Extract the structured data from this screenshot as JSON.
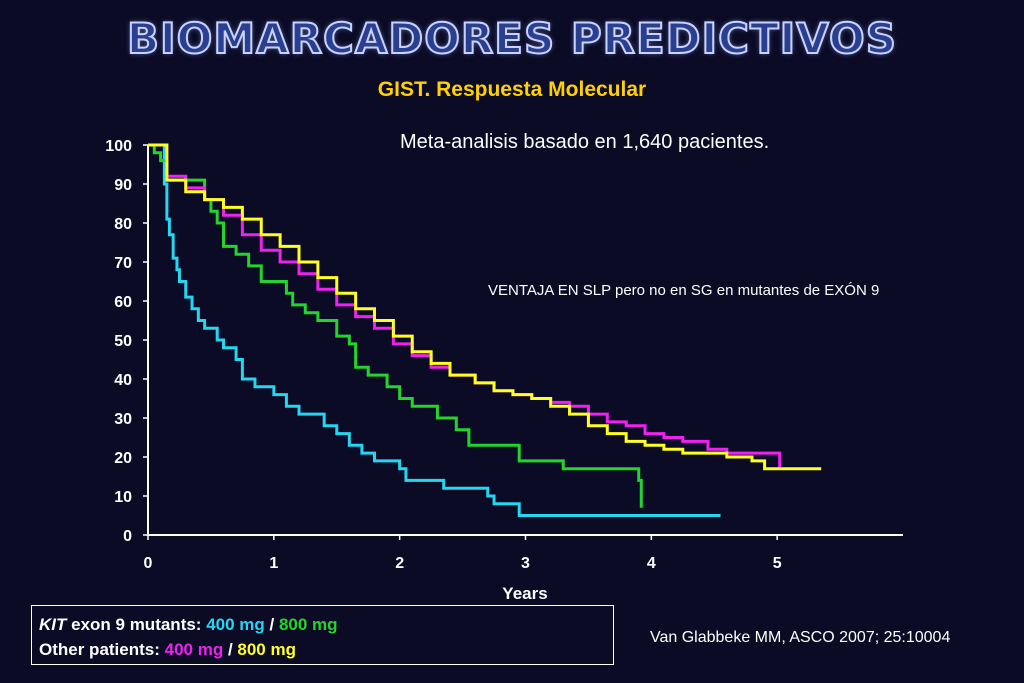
{
  "header": {
    "title": "BIOMARCADORES PREDICTIVOS",
    "subtitle": "GIST. Respuesta Molecular"
  },
  "note": "Meta-analisis basado en 1,640 pacientes.",
  "annotation": "VENTAJA EN SLP pero no en SG en mutantes de EXÓN 9",
  "legend": {
    "kit_italic": "KIT",
    "kit_rest": " exon 9 mutants: ",
    "other_label": "Other patients: ",
    "dose_400": "400 mg",
    "dose_800": "800 mg",
    "separator": " / "
  },
  "citation": "Van Glabbeke MM, ASCO 2007; 25:10004",
  "colors": {
    "kit_400": "#25d6f0",
    "kit_800": "#22d42b",
    "other_400": "#ee22ee",
    "other_800": "#ffff22",
    "axis": "#ffffff"
  },
  "chart_data": {
    "type": "line",
    "step": true,
    "xlabel": "Years",
    "ylabel": "",
    "xlim": [
      0,
      6
    ],
    "ylim": [
      0,
      100
    ],
    "x_ticks": [
      0,
      1,
      2,
      3,
      4,
      5
    ],
    "y_ticks": [
      0,
      10,
      20,
      30,
      40,
      50,
      60,
      70,
      80,
      90,
      100
    ],
    "grid": false,
    "legend": "bottom-left",
    "series": [
      {
        "key": "kit_400",
        "x": [
          0,
          0.08,
          0.13,
          0.15,
          0.17,
          0.2,
          0.23,
          0.25,
          0.3,
          0.35,
          0.4,
          0.45,
          0.55,
          0.6,
          0.7,
          0.75,
          0.85,
          1.0,
          1.1,
          1.2,
          1.4,
          1.5,
          1.6,
          1.7,
          1.8,
          2.0,
          2.05,
          2.35,
          2.7,
          2.75,
          2.95,
          4.55
        ],
        "y": [
          100,
          100,
          90,
          81,
          77,
          71,
          68,
          65,
          61,
          58,
          55,
          53,
          50,
          48,
          45,
          40,
          38,
          36,
          33,
          31,
          28,
          26,
          23,
          21,
          19,
          17,
          14,
          12,
          10,
          8,
          5,
          5
        ]
      },
      {
        "key": "kit_800",
        "x": [
          0,
          0.05,
          0.1,
          0.15,
          0.45,
          0.5,
          0.55,
          0.6,
          0.7,
          0.8,
          0.9,
          1.1,
          1.15,
          1.25,
          1.35,
          1.5,
          1.6,
          1.65,
          1.75,
          1.9,
          2.0,
          2.1,
          2.3,
          2.45,
          2.55,
          2.95,
          3.3,
          3.9,
          3.92
        ],
        "y": [
          100,
          98,
          96,
          91,
          86,
          83,
          80,
          74,
          72,
          69,
          65,
          62,
          59,
          57,
          55,
          51,
          49,
          43,
          41,
          38,
          35,
          33,
          30,
          27,
          23,
          19,
          17,
          14,
          7
        ]
      },
      {
        "key": "other_400",
        "x": [
          0,
          0.15,
          0.3,
          0.45,
          0.6,
          0.75,
          0.9,
          1.05,
          1.2,
          1.35,
          1.5,
          1.65,
          1.8,
          1.95,
          2.1,
          2.25,
          2.4,
          2.6,
          2.75,
          2.9,
          3.05,
          3.2,
          3.35,
          3.5,
          3.65,
          3.8,
          3.95,
          4.1,
          4.25,
          4.45,
          4.6,
          5.0,
          5.02
        ],
        "y": [
          100,
          92,
          89,
          86,
          82,
          77,
          73,
          70,
          67,
          63,
          59,
          56,
          53,
          49,
          46,
          43,
          41,
          39,
          37,
          36,
          35,
          34,
          33,
          31,
          29,
          28,
          26,
          25,
          24,
          22,
          21,
          21,
          17
        ]
      },
      {
        "key": "other_800",
        "x": [
          0,
          0.15,
          0.3,
          0.45,
          0.6,
          0.75,
          0.9,
          1.05,
          1.2,
          1.35,
          1.5,
          1.65,
          1.8,
          1.95,
          2.1,
          2.25,
          2.4,
          2.6,
          2.75,
          2.9,
          3.05,
          3.2,
          3.35,
          3.5,
          3.65,
          3.8,
          3.95,
          4.1,
          4.25,
          4.45,
          4.6,
          4.8,
          4.9,
          5.1,
          5.35
        ],
        "y": [
          100,
          91,
          88,
          86,
          84,
          81,
          77,
          74,
          70,
          66,
          62,
          58,
          55,
          51,
          47,
          44,
          41,
          39,
          37,
          36,
          35,
          33,
          31,
          28,
          26,
          24,
          23,
          22,
          21,
          21,
          20,
          19,
          17,
          17,
          17
        ]
      }
    ]
  }
}
